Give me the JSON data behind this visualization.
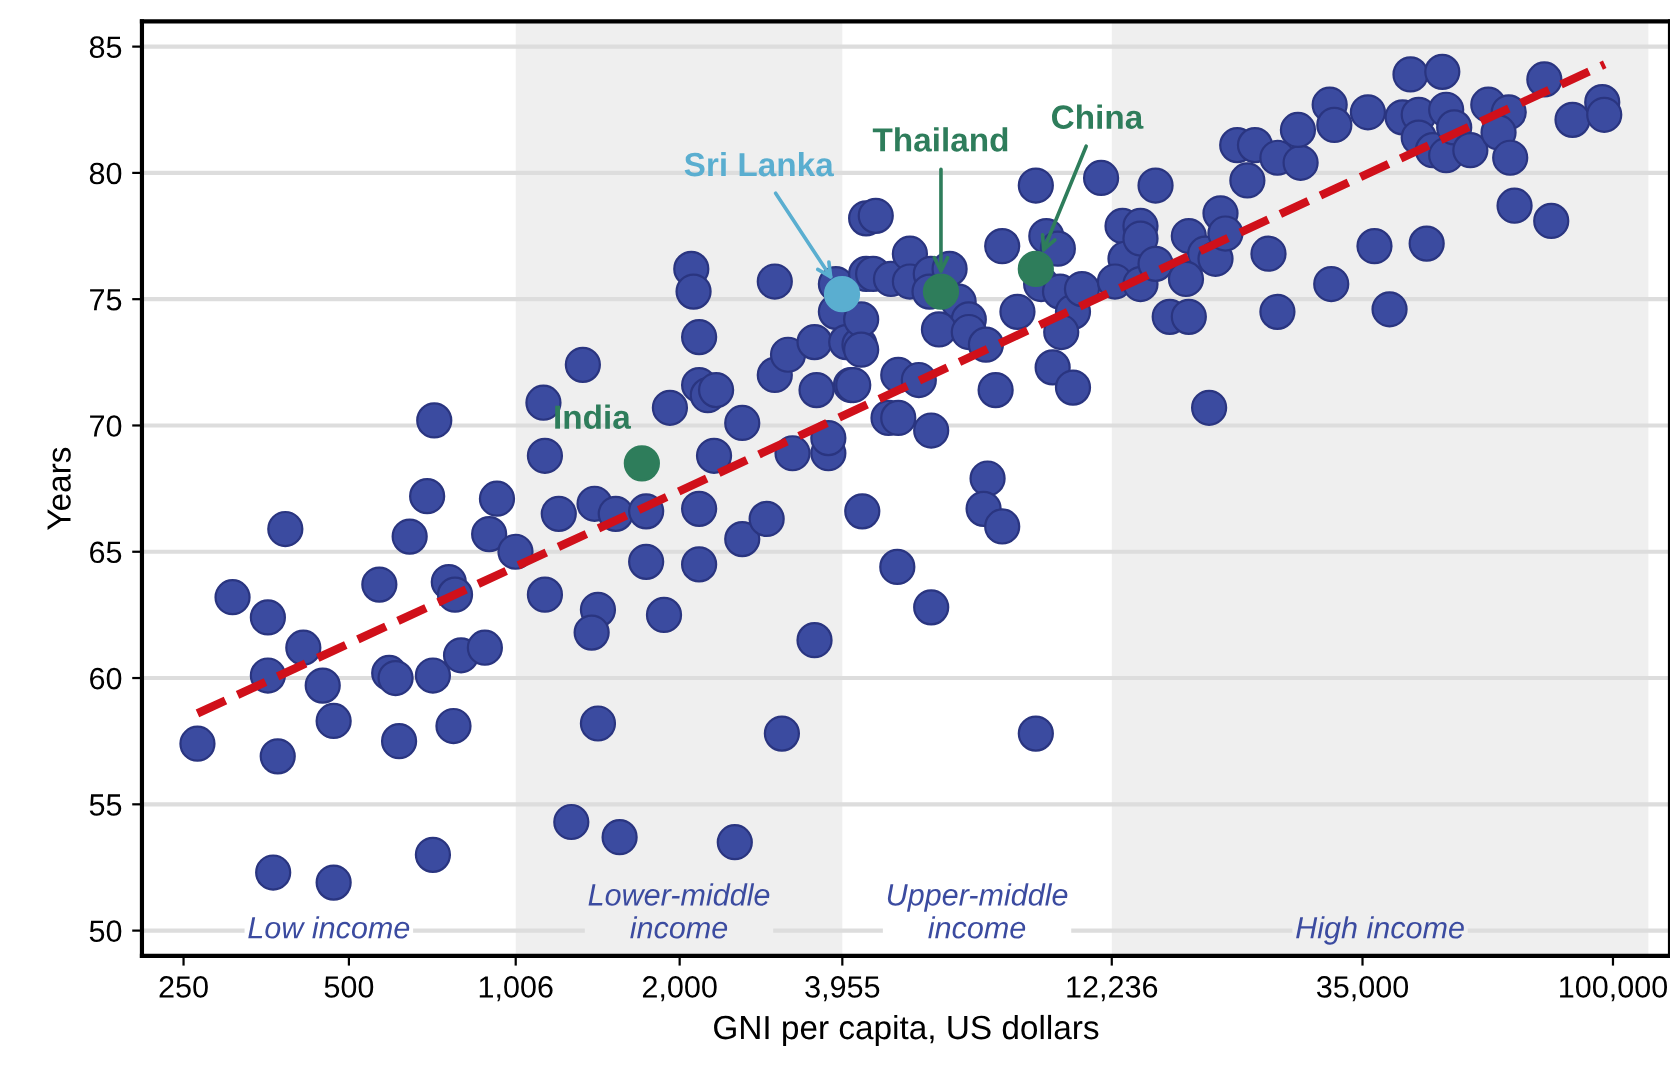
{
  "chart_data": {
    "type": "scatter",
    "xlabel": "GNI per capita, US dollars",
    "ylabel": "Years",
    "xlim": [
      210,
      127000
    ],
    "ylim": [
      49,
      86
    ],
    "log": "x",
    "grid": "y",
    "marker": "circle",
    "xticks": [
      250,
      500,
      {
        "value": 1006,
        "label": "1,006"
      },
      {
        "value": 2000,
        "label": "2,000"
      },
      {
        "value": 3955,
        "label": "3,955"
      },
      {
        "value": 12236,
        "label": "12,236"
      },
      {
        "value": 35000,
        "label": "35,000"
      },
      {
        "value": 100000,
        "label": "100,000"
      }
    ],
    "yticks": [
      50,
      55,
      60,
      65,
      70,
      75,
      80,
      85
    ],
    "annotations": [
      "Low income",
      "Upper-middle\nincome"
    ],
    "bands": [
      {
        "axis": "x",
        "from": 1006,
        "to": 3955,
        "label": "Lower-middle\nincome",
        "color": "#efefef"
      },
      {
        "axis": "x",
        "from": 12236,
        "to": 116000,
        "label": "High income",
        "color": "#efefef"
      }
    ],
    "series": [
      {
        "type": "line",
        "color": "#d0101a",
        "line_style": "dashed",
        "marker": "none",
        "x": [
          265,
          96600
        ],
        "values": [
          58.6,
          84.3
        ]
      },
      {
        "color": "#3b4ba0",
        "x": [
          265,
          307,
          383,
          356,
          413,
          356,
          371,
          448,
          469,
          364,
          469,
          568,
          592,
          608,
          617,
          645,
          694,
          715,
          711,
          760,
          780,
          775,
          711,
          800,
          884,
          900,
          930,
          1005,
          1130,
          1137,
          1137,
          1205,
          1333,
          1400,
          1530,
          1420,
          1383,
          1420,
          1270,
          1555,
          1738,
          1738,
          1873,
          1920,
          2100,
          2120,
          2170,
          2170,
          2250,
          2330,
          2310,
          2170,
          2170,
          2600,
          2600,
          2880,
          2520,
          2980,
          2980,
          3150,
          3520,
          3550,
          3210,
          3730,
          3730,
          3520,
          3070,
          3850,
          3850,
          4020,
          4250,
          4100,
          4370,
          4370,
          4300,
          4550,
          4500,
          4850,
          5250,
          5250,
          5730,
          6200,
          5700,
          6440,
          6720,
          5930,
          6720,
          7220,
          4280,
          4280,
          4140,
          5000,
          5450,
          4800,
          5000,
          5740,
          7520,
          4980,
          5740,
          7270,
          7150,
          7730,
          8900,
          7730,
          8900,
          9300,
          9760,
          8240,
          9100,
          9850,
          10400,
          9900,
          10800,
          9550,
          10400,
          11700,
          12800,
          13800,
          12960,
          13800,
          12400,
          13800,
          14700,
          14700,
          16900,
          18100,
          18900,
          19300,
          19700,
          16700,
          15600,
          16900,
          18400,
          20700,
          22300,
          24500,
          27000,
          21600,
          26700,
          30500,
          31100,
          35800,
          23600,
          24500,
          30700,
          36800,
          39200,
          45800,
          42800,
          48900,
          41400,
          44300,
          44300,
          47000,
          49700,
          49700,
          51400,
          55000,
          59300,
          64600,
          61900,
          65000,
          66200,
          77200,
          75000,
          84400,
          95600,
          96400
        ],
        "values": [
          57.4,
          63.2,
          65.9,
          62.4,
          61.2,
          60.1,
          56.9,
          59.7,
          58.3,
          52.3,
          51.9,
          63.7,
          60.2,
          60.0,
          57.5,
          65.6,
          67.2,
          70.2,
          60.1,
          63.8,
          63.3,
          58.1,
          53.0,
          60.9,
          61.2,
          65.7,
          67.1,
          65.0,
          70.9,
          68.8,
          63.3,
          66.5,
          72.4,
          66.9,
          66.5,
          62.7,
          61.8,
          58.2,
          54.3,
          53.7,
          66.6,
          64.6,
          62.5,
          70.7,
          76.2,
          75.3,
          73.5,
          71.6,
          71.2,
          71.4,
          68.8,
          66.7,
          64.5,
          70.1,
          65.5,
          66.3,
          53.5,
          75.7,
          72.0,
          72.8,
          73.3,
          71.4,
          68.9,
          68.9,
          69.5,
          61.5,
          57.8,
          75.6,
          74.5,
          73.3,
          73.2,
          71.6,
          78.2,
          76.0,
          66.6,
          78.3,
          76.0,
          75.8,
          76.8,
          75.7,
          76.0,
          76.2,
          75.3,
          74.9,
          74.2,
          73.8,
          73.7,
          73.2,
          74.2,
          73.0,
          71.6,
          72.0,
          71.8,
          70.3,
          70.3,
          69.8,
          71.4,
          64.4,
          62.8,
          67.9,
          66.7,
          66.0,
          57.8,
          77.1,
          79.5,
          77.5,
          77.0,
          74.5,
          75.6,
          75.3,
          74.5,
          73.7,
          75.4,
          72.3,
          71.5,
          79.8,
          77.9,
          77.9,
          76.6,
          77.4,
          75.7,
          75.6,
          79.5,
          76.4,
          77.5,
          76.8,
          76.6,
          78.4,
          77.6,
          75.8,
          74.3,
          74.3,
          70.7,
          81.1,
          81.1,
          80.6,
          80.4,
          79.7,
          81.7,
          82.7,
          81.9,
          82.4,
          76.8,
          74.5,
          75.6,
          77.1,
          74.6,
          77.2,
          83.9,
          84.0,
          82.2,
          82.3,
          81.4,
          80.9,
          80.7,
          82.5,
          81.8,
          80.9,
          82.7,
          82.4,
          81.6,
          80.6,
          78.7,
          78.1,
          83.7,
          82.1,
          82.8,
          82.3
        ]
      },
      {
        "name": "India",
        "color": "#2e7d5b",
        "x": [
          1707
        ],
        "values": [
          68.5
        ]
      },
      {
        "name": "Sri Lanka",
        "color": "#5aaed0",
        "x": [
          3950
        ],
        "values": [
          75.2
        ]
      },
      {
        "name": "Thailand",
        "color": "#2e7d5b",
        "x": [
          5980
        ],
        "values": [
          75.3
        ]
      },
      {
        "name": "China",
        "color": "#2e7d5b",
        "x": [
          8900
        ],
        "values": [
          76.2
        ]
      }
    ]
  }
}
